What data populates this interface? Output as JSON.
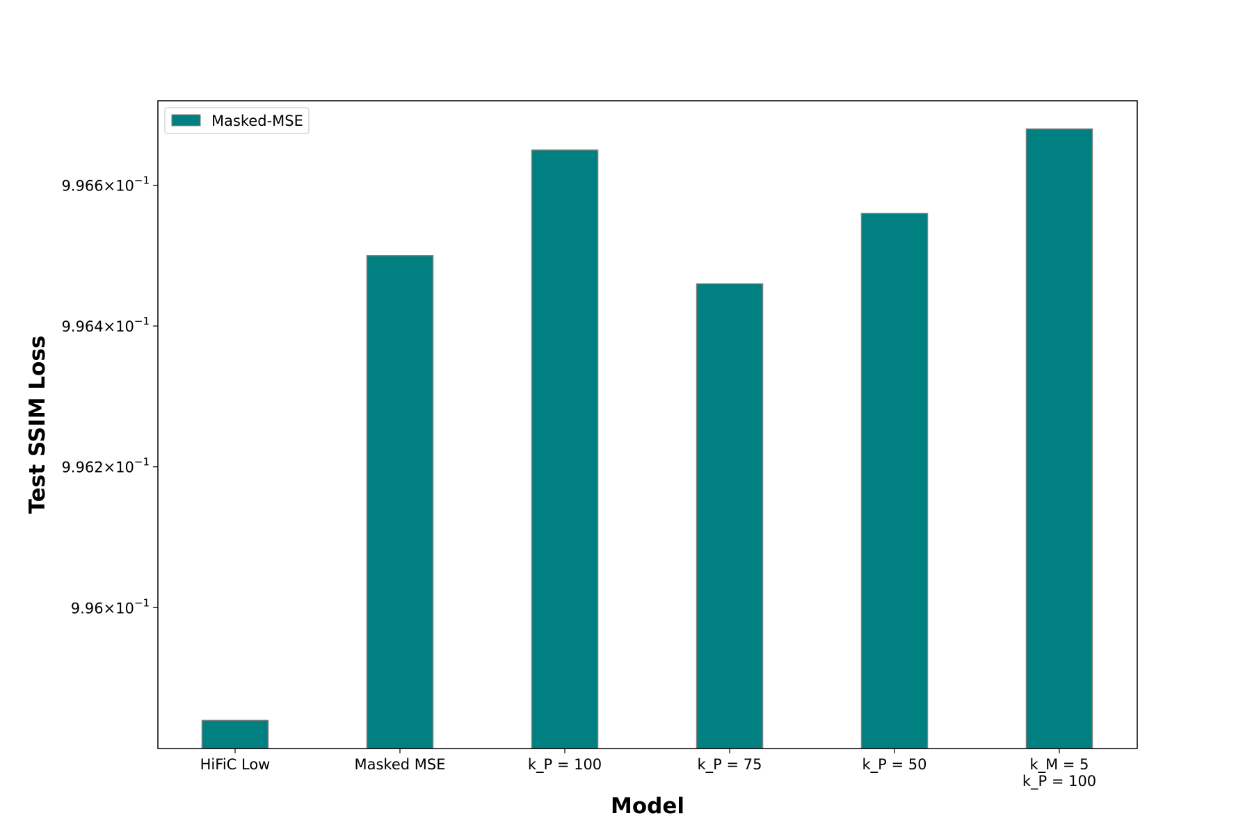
{
  "chart_data": {
    "type": "bar",
    "title": "",
    "xlabel": "Model",
    "ylabel": "Test SSIM Loss",
    "y_scale": "log",
    "categories": [
      [
        "HiFiC Low"
      ],
      [
        "Masked MSE"
      ],
      [
        "k_P = 100"
      ],
      [
        "k_P = 75"
      ],
      [
        "k_P = 50"
      ],
      [
        "k_M = 5",
        "k_P = 100"
      ]
    ],
    "series": [
      {
        "name": "Masked-MSE",
        "color": "#008080",
        "edge_color": "#808080",
        "values": [
          0.99584,
          0.9965,
          0.99665,
          0.99646,
          0.99656,
          0.99668
        ]
      }
    ],
    "ylim": [
      0.9958,
      0.99672
    ],
    "yticks": [
      {
        "value": 0.996,
        "mantissa": "9.96",
        "exponent": "−1"
      },
      {
        "value": 0.9962,
        "mantissa": "9.962",
        "exponent": "−1"
      },
      {
        "value": 0.9964,
        "mantissa": "9.964",
        "exponent": "−1"
      },
      {
        "value": 0.9966,
        "mantissa": "9.966",
        "exponent": "−1"
      }
    ],
    "grid": false,
    "legend_position": "top-left"
  }
}
